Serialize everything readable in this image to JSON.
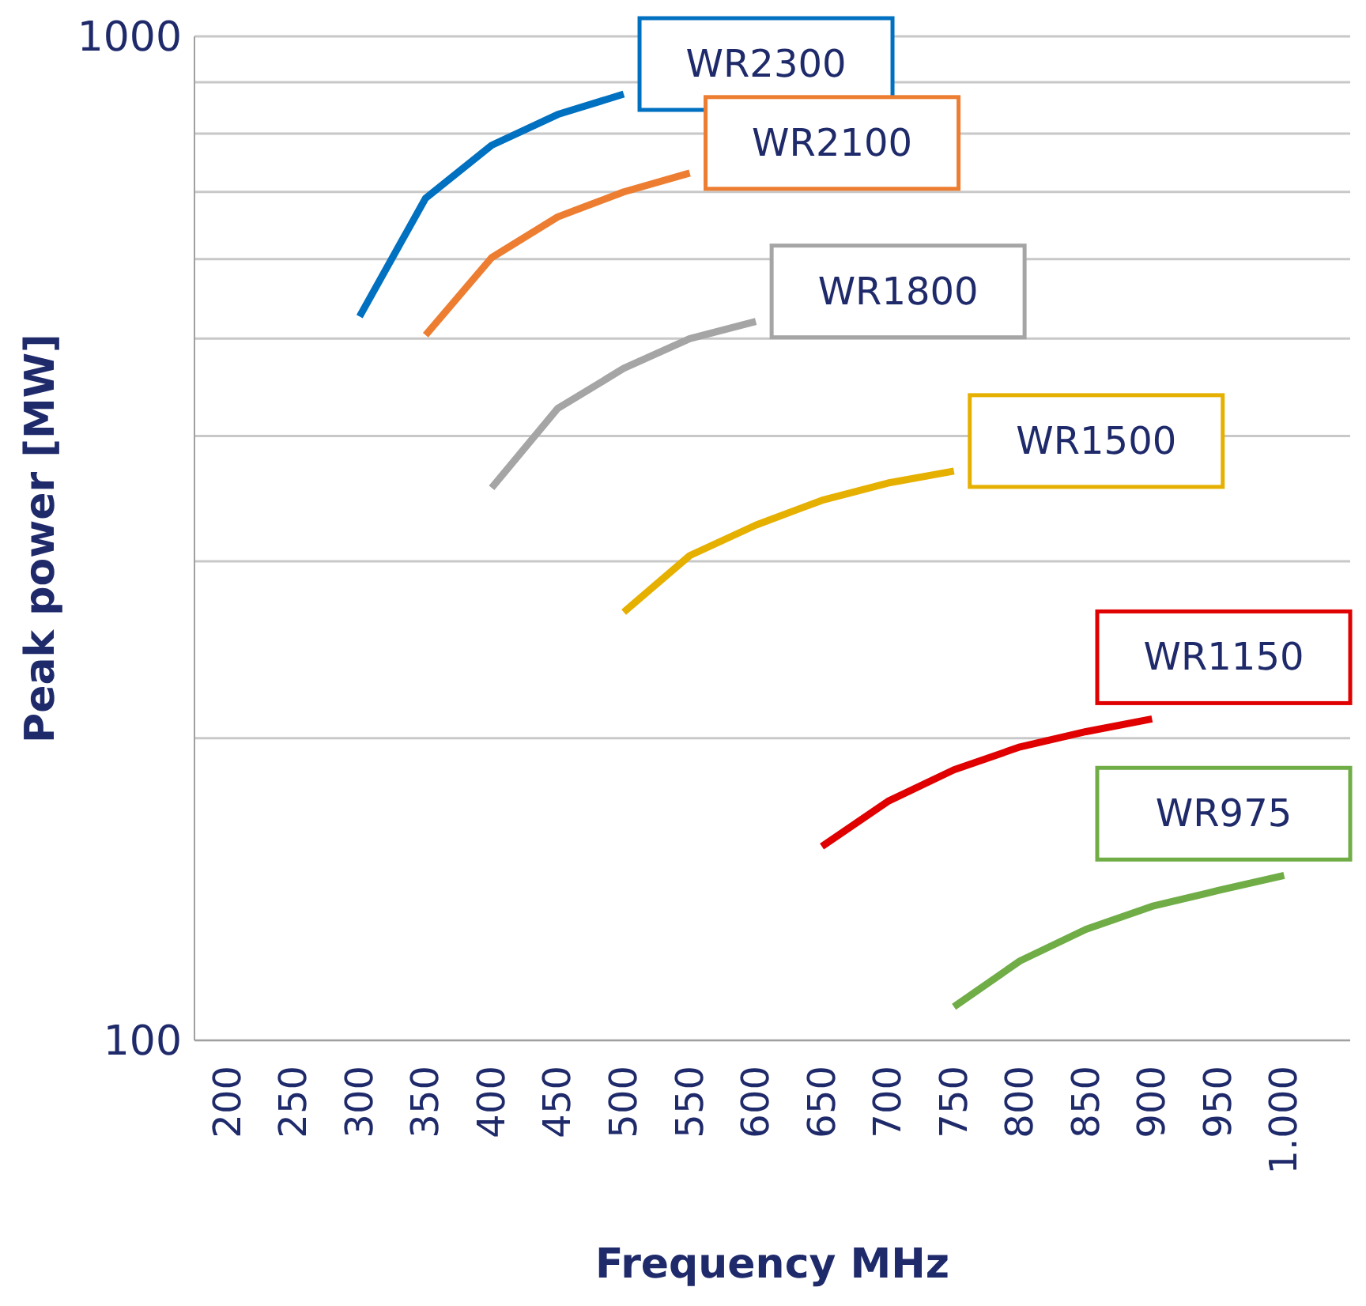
{
  "chart_data": {
    "type": "line",
    "xlabel": "Frequency MHz",
    "ylabel": "Peak power [MW]",
    "log": "y",
    "grid": "y",
    "xlim": [
      175,
      1050
    ],
    "xticks": [
      200,
      250,
      300,
      350,
      400,
      450,
      500,
      550,
      600,
      650,
      700,
      750,
      800,
      850,
      900,
      950,
      {
        "value": 1000,
        "label": "1.000"
      }
    ],
    "ylim": [
      100,
      1000
    ],
    "yticks": [
      100,
      {
        "value": 200,
        "label": null
      },
      {
        "value": 300,
        "label": null
      },
      {
        "value": 400,
        "label": null
      },
      {
        "value": 500,
        "label": null
      },
      {
        "value": 600,
        "label": null
      },
      {
        "value": 700,
        "label": null
      },
      {
        "value": 800,
        "label": null
      },
      {
        "value": 900,
        "label": null
      },
      1000
    ],
    "marker": "none",
    "line_style": "solid",
    "series": [
      {
        "name": "WR2300",
        "color": "#0070c0",
        "x": [
          300,
          350,
          400,
          450,
          500
        ],
        "values": [
          526,
          690,
          779,
          836,
          876
        ]
      },
      {
        "name": "WR2100",
        "color": "#ed7d31",
        "x": [
          350,
          400,
          450,
          500,
          550
        ],
        "values": [
          504,
          602,
          661,
          700,
          731
        ]
      },
      {
        "name": "WR1800",
        "color": "#a5a5a5",
        "x": [
          400,
          450,
          500,
          550,
          600
        ],
        "values": [
          355,
          426,
          467,
          500,
          520
        ]
      },
      {
        "name": "WR1500",
        "color": "#e6b000",
        "x": [
          500,
          550,
          600,
          650,
          700,
          750
        ],
        "values": [
          267,
          304,
          326,
          345,
          359,
          369
        ]
      },
      {
        "name": "WR1150",
        "color": "#e00000",
        "x": [
          650,
          700,
          750,
          800,
          850,
          900
        ],
        "values": [
          156,
          173,
          186,
          196,
          203,
          209
        ]
      },
      {
        "name": "WR975",
        "color": "#70ad47",
        "x": [
          750,
          800,
          850,
          900,
          950,
          1000
        ],
        "values": [
          108,
          120,
          129,
          136,
          141,
          146
        ]
      }
    ]
  }
}
